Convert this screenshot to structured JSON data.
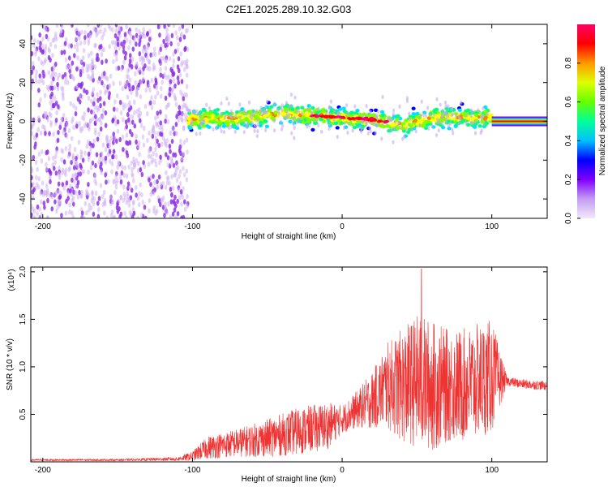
{
  "title": "C2E1.2025.289.10.32.G03",
  "chart_data": [
    {
      "type": "heatmap",
      "name": "spectrogram",
      "xlabel": "Height of straight line (km)",
      "ylabel": "Frequency (Hz)",
      "xlim": [
        -208,
        137
      ],
      "ylim": [
        -50,
        50
      ],
      "xticks": [
        -200,
        -100,
        0,
        100
      ],
      "yticks": [
        -40,
        -20,
        0,
        20,
        40
      ],
      "xtick_labels": [
        "-200",
        "-100",
        "0",
        "100"
      ],
      "ytick_labels": [
        "-40",
        "-20",
        "0",
        "20",
        "40"
      ],
      "colorbar": {
        "label": "Normalized spectral amplitude",
        "range": [
          0,
          1
        ],
        "ticks": [
          0.0,
          0.2,
          0.4,
          0.6,
          0.8
        ],
        "tick_labels": [
          "0.0",
          "0.2",
          "0.4",
          "0.6",
          "0.8"
        ],
        "colors": [
          "#f2e9fb",
          "#8000ff",
          "#0000ff",
          "#00e0ff",
          "#00ff80",
          "#80ff00",
          "#ffff00",
          "#ff8000",
          "#ff0000",
          "#ff0080"
        ]
      },
      "regions": [
        {
          "x_range": [
            -208,
            -103
          ],
          "description": "broadband noise",
          "freq_range": [
            -50,
            50
          ],
          "amplitude": 0.1
        },
        {
          "x_range": [
            -103,
            100
          ],
          "description": "signal band",
          "center_freq_hz": 2,
          "freq_halfwidth_hz": 8,
          "amplitude": 0.35
        },
        {
          "x_range": [
            100,
            137
          ],
          "description": "narrow tone",
          "center_freq_hz": 0,
          "freq_halfwidth_hz": 1.5,
          "amplitude": 0.95
        }
      ],
      "ridge": {
        "x": [
          -100,
          -60,
          -40,
          -20,
          0,
          20,
          40,
          60,
          100,
          137
        ],
        "freq_hz": [
          1,
          2,
          4,
          3,
          2,
          1,
          -2,
          2,
          2,
          0
        ]
      }
    },
    {
      "type": "line",
      "name": "snr",
      "xlabel": "Height of straight line (km)",
      "ylabel": "SNR (10 * v/v)",
      "y_multiplier_label": "(x10⁴)",
      "xlim": [
        -208,
        137
      ],
      "ylim": [
        0,
        2.05
      ],
      "xticks": [
        -200,
        -100,
        0,
        100
      ],
      "yticks": [
        0.5,
        1.0,
        1.5,
        2.0
      ],
      "xtick_labels": [
        "-200",
        "-100",
        "0",
        "100"
      ],
      "ytick_labels": [
        "0.5",
        "1.0",
        "1.5",
        "2.0"
      ],
      "color": "#ee3333",
      "series": [
        {
          "name": "SNR",
          "envelope_x": [
            -208,
            -150,
            -110,
            -100,
            -90,
            -70,
            -50,
            -30,
            -10,
            0,
            10,
            20,
            30,
            40,
            50,
            60,
            70,
            80,
            90,
            100,
            110,
            120,
            137
          ],
          "mean": [
            0.02,
            0.02,
            0.03,
            0.06,
            0.15,
            0.2,
            0.25,
            0.32,
            0.38,
            0.45,
            0.55,
            0.65,
            0.8,
            0.8,
            0.85,
            0.8,
            0.8,
            0.8,
            0.85,
            0.9,
            0.85,
            0.82,
            0.8
          ],
          "spread": [
            0.01,
            0.01,
            0.02,
            0.05,
            0.12,
            0.15,
            0.2,
            0.25,
            0.25,
            0.15,
            0.2,
            0.3,
            0.45,
            0.6,
            0.7,
            0.7,
            0.6,
            0.6,
            0.6,
            0.6,
            0.05,
            0.05,
            0.05
          ],
          "peak": {
            "x": 53,
            "y": 2.03
          }
        }
      ]
    }
  ]
}
